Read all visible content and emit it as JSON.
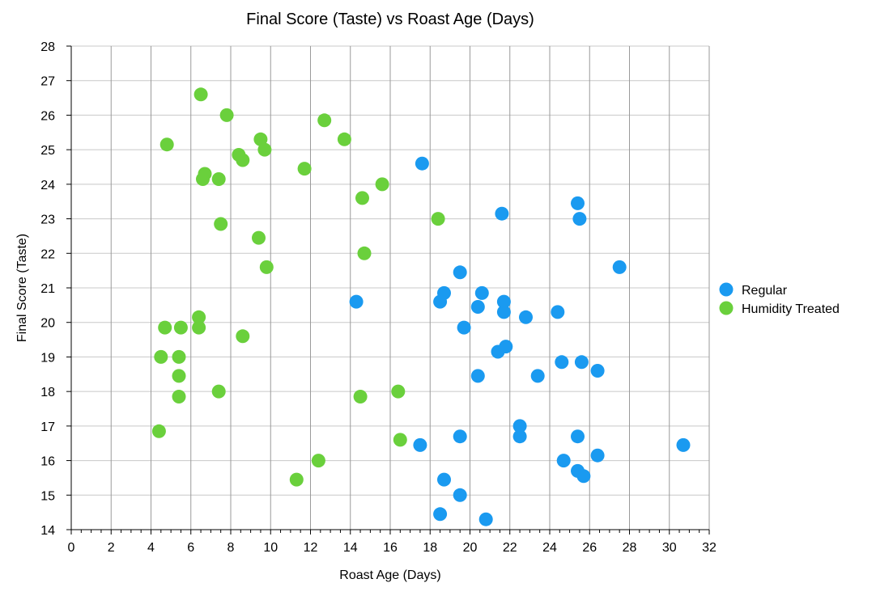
{
  "chart_data": {
    "type": "scatter",
    "title": "Final Score (Taste) vs Roast Age (Days)",
    "xlabel": "Roast Age (Days)",
    "ylabel": "Final Score (Taste)",
    "xlim": [
      0,
      32
    ],
    "ylim": [
      14,
      28
    ],
    "x_ticks": [
      0,
      2,
      4,
      6,
      8,
      10,
      12,
      14,
      16,
      18,
      20,
      22,
      24,
      26,
      28,
      30,
      32
    ],
    "y_ticks": [
      14,
      15,
      16,
      17,
      18,
      19,
      20,
      21,
      22,
      23,
      24,
      25,
      26,
      27,
      28
    ],
    "grid": true,
    "legend_position": "right",
    "series": [
      {
        "name": "Regular",
        "color": "#1a9af0",
        "points": [
          [
            17.6,
            24.6
          ],
          [
            21.6,
            23.15
          ],
          [
            25.4,
            23.45
          ],
          [
            25.5,
            23.0
          ],
          [
            27.5,
            21.6
          ],
          [
            19.5,
            21.45
          ],
          [
            18.7,
            20.85
          ],
          [
            20.6,
            20.85
          ],
          [
            18.5,
            20.6
          ],
          [
            14.3,
            20.6
          ],
          [
            20.4,
            20.45
          ],
          [
            21.7,
            20.6
          ],
          [
            21.7,
            20.3
          ],
          [
            22.8,
            20.15
          ],
          [
            24.4,
            20.3
          ],
          [
            19.7,
            19.85
          ],
          [
            21.4,
            19.15
          ],
          [
            21.8,
            19.3
          ],
          [
            24.6,
            18.85
          ],
          [
            25.6,
            18.85
          ],
          [
            20.4,
            18.45
          ],
          [
            23.4,
            18.45
          ],
          [
            26.4,
            18.6
          ],
          [
            22.5,
            17.0
          ],
          [
            22.5,
            16.7
          ],
          [
            19.5,
            16.7
          ],
          [
            17.5,
            16.45
          ],
          [
            25.4,
            16.7
          ],
          [
            24.7,
            16.0
          ],
          [
            26.4,
            16.15
          ],
          [
            25.4,
            15.7
          ],
          [
            25.7,
            15.55
          ],
          [
            30.7,
            16.45
          ],
          [
            18.7,
            15.45
          ],
          [
            19.5,
            15.0
          ],
          [
            18.5,
            14.45
          ],
          [
            20.8,
            14.3
          ]
        ]
      },
      {
        "name": "Humidity Treated",
        "color": "#6ad03c",
        "points": [
          [
            6.5,
            26.6
          ],
          [
            7.8,
            26.0
          ],
          [
            12.7,
            25.85
          ],
          [
            4.8,
            25.15
          ],
          [
            9.5,
            25.3
          ],
          [
            13.7,
            25.3
          ],
          [
            9.7,
            25.0
          ],
          [
            8.4,
            24.85
          ],
          [
            8.6,
            24.7
          ],
          [
            11.7,
            24.45
          ],
          [
            6.7,
            24.3
          ],
          [
            6.6,
            24.15
          ],
          [
            7.4,
            24.15
          ],
          [
            15.6,
            24.0
          ],
          [
            14.6,
            23.6
          ],
          [
            18.4,
            23.0
          ],
          [
            7.5,
            22.85
          ],
          [
            9.4,
            22.45
          ],
          [
            14.7,
            22.0
          ],
          [
            9.8,
            21.6
          ],
          [
            4.7,
            19.85
          ],
          [
            5.5,
            19.85
          ],
          [
            6.4,
            20.15
          ],
          [
            6.4,
            19.85
          ],
          [
            8.6,
            19.6
          ],
          [
            4.5,
            19.0
          ],
          [
            5.4,
            19.0
          ],
          [
            5.4,
            18.45
          ],
          [
            5.4,
            17.85
          ],
          [
            7.4,
            18.0
          ],
          [
            14.5,
            17.85
          ],
          [
            16.4,
            18.0
          ],
          [
            16.5,
            16.6
          ],
          [
            4.4,
            16.85
          ],
          [
            12.4,
            16.0
          ],
          [
            11.3,
            15.45
          ]
        ]
      }
    ]
  }
}
